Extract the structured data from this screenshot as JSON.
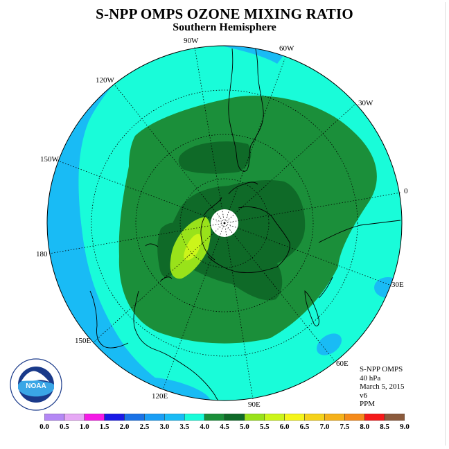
{
  "header": {
    "title": "S-NPP OMPS OZONE MIXING RATIO",
    "subtitle": "Southern Hemisphere"
  },
  "map": {
    "projection": "south-polar-stereographic",
    "longitude_labels": [
      "90W",
      "60W",
      "30W",
      "0",
      "30E",
      "60E",
      "90E",
      "120E",
      "150E",
      "180",
      "150W",
      "120W"
    ],
    "polar_gap_color": "#ffffff",
    "coastline_color": "#000000",
    "contour_colors": {
      "3.0-3.5": "#19bbf5",
      "3.5-4.0": "#19fcd9",
      "4.0-4.5": "#1b8f3a",
      "4.5-5.0": "#0f6a28",
      "5.0-5.5": "#99e21a",
      "5.5-6.0": "#ccf51a"
    }
  },
  "info": {
    "product": "S-NPP OMPS",
    "level": "40 hPa",
    "date": "March 5, 2015",
    "version": "v6",
    "units": "PPM"
  },
  "logo": {
    "text": "NOAA",
    "ring_text": "NATIONAL OCEANIC AND ATMOSPHERIC ADMINISTRATION · U.S. DEPARTMENT OF COMMERCE"
  },
  "colorbar": {
    "ticks": [
      "0.0",
      "0.5",
      "1.0",
      "1.5",
      "2.0",
      "2.5",
      "3.0",
      "3.5",
      "4.0",
      "4.5",
      "5.0",
      "5.5",
      "6.0",
      "6.5",
      "7.0",
      "7.5",
      "8.0",
      "8.5",
      "9.0"
    ],
    "colors": [
      "#b488f5",
      "#e6a8f5",
      "#f51ae6",
      "#1a1ae6",
      "#1a72e6",
      "#1a9ef5",
      "#19bbf5",
      "#19fcd9",
      "#1b8f3a",
      "#0f6a28",
      "#99e21a",
      "#ccf51a",
      "#f5f51a",
      "#f5d21a",
      "#f5b11a",
      "#f58a1a",
      "#f51a1a",
      "#8b5a3c"
    ]
  }
}
